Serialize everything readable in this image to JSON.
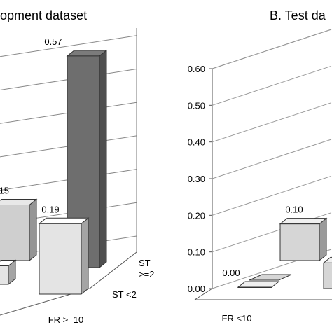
{
  "panels": {
    "a": {
      "title": "opment dataset"
    },
    "b": {
      "title": "B. Test da"
    }
  },
  "chart_data": [
    {
      "type": "bar",
      "title": "opment dataset",
      "ylim": [
        0,
        0.6
      ],
      "grid": true,
      "depth_labels": [
        "ST\n>=2",
        "ST <2"
      ],
      "x_labels": [
        "FR >=10"
      ],
      "bars": [
        {
          "label": "0.57",
          "value": 0.57,
          "group": "FR >=10",
          "depth": "ST\n>=2",
          "color": "#6e6e6e"
        },
        {
          "label": "0.19",
          "value": 0.19,
          "group": "FR >=10",
          "depth": "ST <2",
          "color": "#e4e4e4"
        },
        {
          "label": ".15",
          "value": 0.15,
          "group": "",
          "depth": "ST\n>=2",
          "color": "#cfcfcf"
        },
        {
          "label": "",
          "value": 0.05,
          "group": "",
          "depth": "ST <2",
          "color": "#e4e4e4"
        }
      ]
    },
    {
      "type": "bar",
      "title": "B. Test da",
      "ylim": [
        0,
        0.6
      ],
      "yticks": [
        "0.00",
        "0.10",
        "0.20",
        "0.30",
        "0.40",
        "0.50",
        "0.60"
      ],
      "grid": true,
      "x_labels": [
        "FR <10"
      ],
      "bars": [
        {
          "label": "0.10",
          "value": 0.1,
          "group": "FR <10",
          "color": "#d6d6d6"
        },
        {
          "label": "0.00",
          "value": 0.0,
          "group": "FR <10",
          "color": "#d6d6d6"
        },
        {
          "label": "",
          "value": 0.07,
          "group": "",
          "color": "#d6d6d6"
        }
      ]
    }
  ]
}
